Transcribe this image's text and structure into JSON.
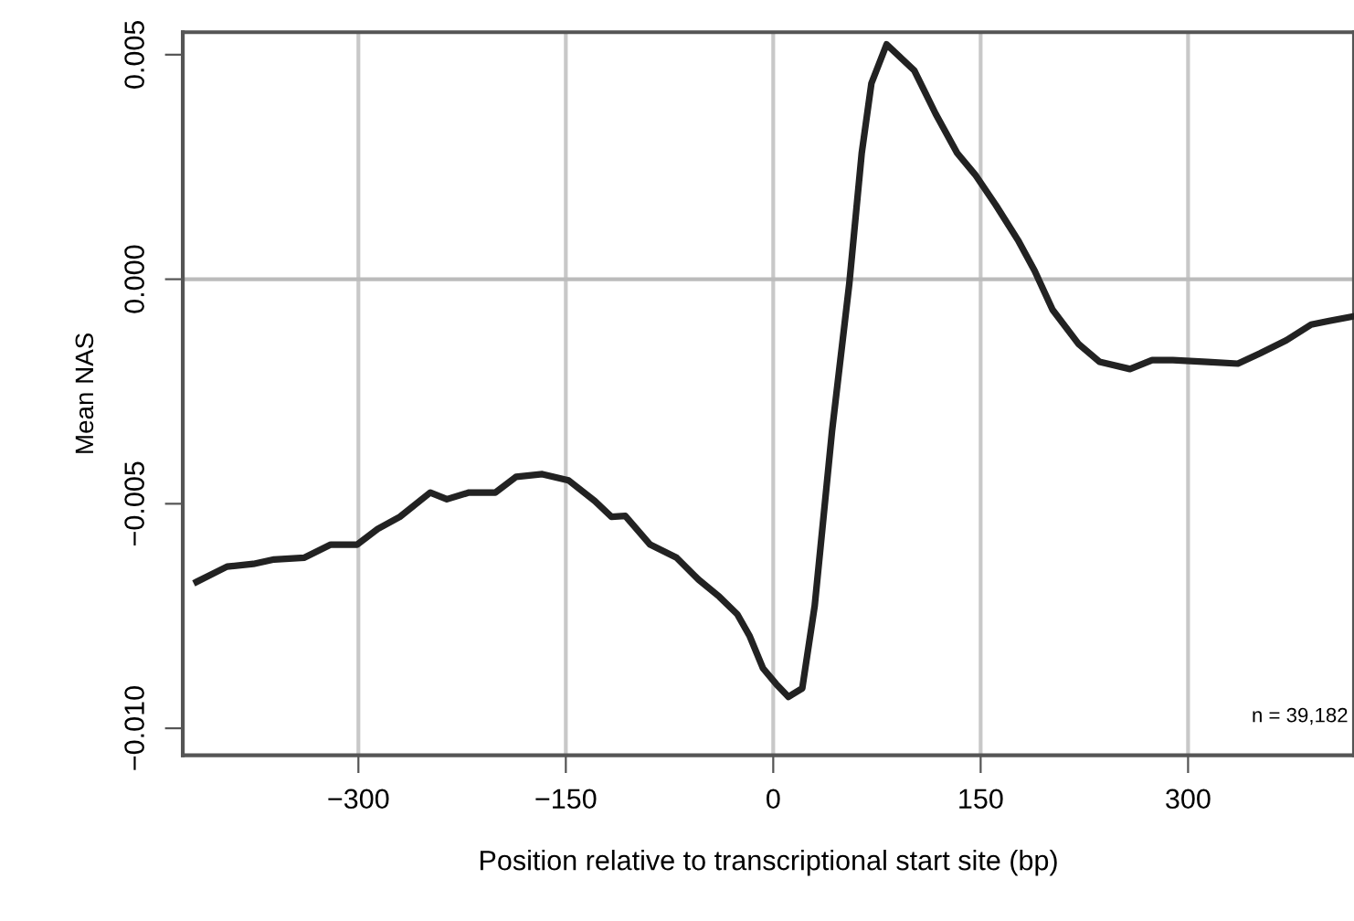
{
  "chart_data": {
    "type": "line",
    "xlabel": "Position relative to transcriptional start site (bp)",
    "ylabel": "Mean NAS",
    "annotations": [
      "n = 39,182"
    ],
    "xlim": [
      -427,
      420
    ],
    "ylim": [
      -0.0106,
      0.0055
    ],
    "xticks": [
      {
        "value": -300,
        "label": "−300"
      },
      {
        "value": -150,
        "label": "−150"
      },
      0,
      150,
      300
    ],
    "yticks": [
      {
        "value": -0.01,
        "label": "−0.010"
      },
      {
        "value": -0.005,
        "label": "−0.005"
      },
      {
        "value": 0,
        "label": "0.000"
      },
      0.005
    ],
    "grid": "x",
    "legend": false,
    "ref_lines": [
      {
        "axis": "y",
        "value": 0,
        "color": "#bbbbbb"
      }
    ],
    "series": [
      {
        "color": "#222222",
        "x": [
          -417,
          -395,
          -376,
          -361,
          -339,
          -320,
          -301,
          -286,
          -270,
          -248,
          -236,
          -220,
          -201,
          -186,
          -167,
          -148,
          -129,
          -117,
          -107,
          -89,
          -70,
          -54,
          -39,
          -26,
          -17,
          -7.5,
          2,
          11,
          21,
          30,
          42.5,
          55,
          64,
          71,
          82,
          102,
          117.5,
          133,
          146,
          161,
          177,
          189,
          202,
          221,
          236,
          258,
          274,
          289,
          314,
          336,
          352,
          371,
          389,
          402,
          419
        ],
        "values": [
          -0.00674,
          -0.0064,
          -0.00634,
          -0.00624,
          -0.0062,
          -0.00591,
          -0.00591,
          -0.00556,
          -0.00529,
          -0.00475,
          -0.0049,
          -0.00475,
          -0.00475,
          -0.0044,
          -0.00434,
          -0.00448,
          -0.00494,
          -0.00529,
          -0.00527,
          -0.00591,
          -0.0062,
          -0.00669,
          -0.00707,
          -0.00746,
          -0.00795,
          -0.00866,
          -0.00901,
          -0.0093,
          -0.00911,
          -0.00727,
          -0.00339,
          -0.0001,
          0.00281,
          0.00436,
          0.00523,
          0.00465,
          0.00368,
          0.00281,
          0.00233,
          0.00165,
          0.00087,
          0.00019,
          -0.00068,
          -0.00145,
          -0.00184,
          -0.002,
          -0.0018,
          -0.0018,
          -0.00184,
          -0.00188,
          -0.00165,
          -0.00136,
          -0.00101,
          -0.00093,
          -0.00083
        ]
      }
    ]
  }
}
